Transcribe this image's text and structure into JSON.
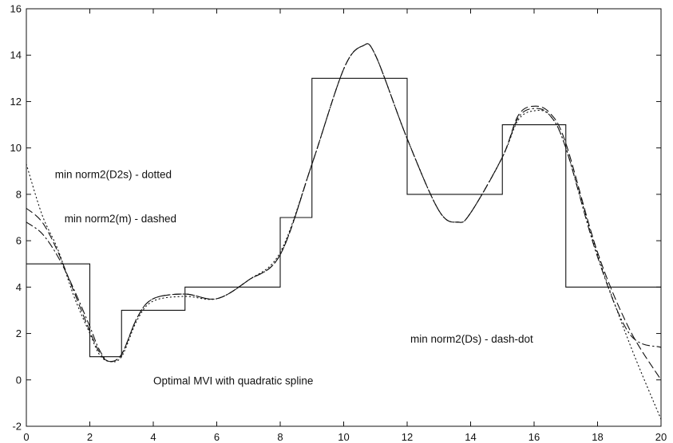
{
  "chart_data": {
    "type": "line",
    "title": "",
    "xlabel": "",
    "ylabel": "",
    "xlim": [
      0,
      20
    ],
    "ylim": [
      -2,
      16
    ],
    "grid": false,
    "x_ticks": [
      0,
      2,
      4,
      6,
      8,
      10,
      12,
      14,
      16,
      18,
      20
    ],
    "y_ticks": [
      -2,
      0,
      2,
      4,
      6,
      8,
      10,
      12,
      14,
      16
    ],
    "colors": {
      "line": "#111111",
      "background": "#ffffff"
    },
    "series": [
      {
        "style": "solid-step",
        "x": [
          0,
          2,
          2,
          3,
          3,
          5,
          5,
          8,
          8,
          9,
          9,
          12,
          12,
          15,
          15,
          17,
          17,
          20
        ],
        "y": [
          5,
          5,
          1,
          1,
          3,
          3,
          4,
          4,
          7,
          7,
          13,
          13,
          8,
          8,
          11,
          11,
          4,
          4
        ]
      },
      {
        "style": "dotted",
        "x": [
          0,
          0.5,
          1,
          1.5,
          2,
          2.3,
          2.6,
          3,
          3.5,
          4,
          5,
          6,
          7,
          8,
          9,
          10,
          10.6,
          11,
          12,
          13,
          13.6,
          14,
          15,
          15.5,
          16,
          16.5,
          17,
          18,
          19,
          20
        ],
        "y": [
          9.3,
          7.1,
          5.6,
          3.6,
          2.0,
          1.1,
          0.8,
          1.0,
          2.6,
          3.4,
          3.6,
          3.5,
          4.3,
          5.5,
          9.3,
          13.4,
          14.4,
          14.0,
          10.4,
          7.3,
          6.8,
          7.2,
          9.6,
          11.2,
          11.6,
          11.4,
          10.0,
          5.4,
          1.6,
          -1.7
        ]
      },
      {
        "style": "dashed",
        "x": [
          0,
          0.5,
          1,
          1.5,
          2,
          2.3,
          2.6,
          3,
          3.5,
          4,
          5,
          6,
          7,
          8,
          9,
          10,
          10.6,
          11,
          12,
          13,
          13.6,
          14,
          15,
          15.5,
          16,
          16.5,
          17,
          18,
          19,
          20
        ],
        "y": [
          7.4,
          6.8,
          5.5,
          3.8,
          2.1,
          1.2,
          0.8,
          1.1,
          2.7,
          3.5,
          3.7,
          3.5,
          4.3,
          5.4,
          9.3,
          13.4,
          14.4,
          14.0,
          10.4,
          7.3,
          6.8,
          7.2,
          9.6,
          11.4,
          11.8,
          11.5,
          10.2,
          5.5,
          2.2,
          0.0
        ]
      },
      {
        "style": "dash-dot",
        "x": [
          0,
          0.5,
          1,
          1.5,
          2,
          2.3,
          2.6,
          3,
          3.5,
          4,
          5,
          6,
          7,
          8,
          9,
          10,
          10.6,
          11,
          12,
          13,
          13.6,
          14,
          15,
          15.5,
          16,
          16.5,
          17,
          18,
          19,
          20
        ],
        "y": [
          6.8,
          6.3,
          5.3,
          3.9,
          2.3,
          1.3,
          0.8,
          1.1,
          2.7,
          3.5,
          3.7,
          3.5,
          4.3,
          5.4,
          9.3,
          13.4,
          14.4,
          14.0,
          10.4,
          7.3,
          6.8,
          7.2,
          9.6,
          11.3,
          11.7,
          11.4,
          10.0,
          5.3,
          2.0,
          1.4
        ]
      }
    ],
    "annotations": [
      {
        "text": "min norm2(D2s) - dotted",
        "x": 0.9,
        "y": 8.7
      },
      {
        "text": "min norm2(m) - dashed",
        "x": 1.2,
        "y": 6.8
      },
      {
        "text": "min norm2(Ds) - dash-dot",
        "x": 12.1,
        "y": 1.6
      },
      {
        "text": "Optimal MVI with quadratic spline",
        "x": 4.0,
        "y": -0.2
      }
    ]
  }
}
